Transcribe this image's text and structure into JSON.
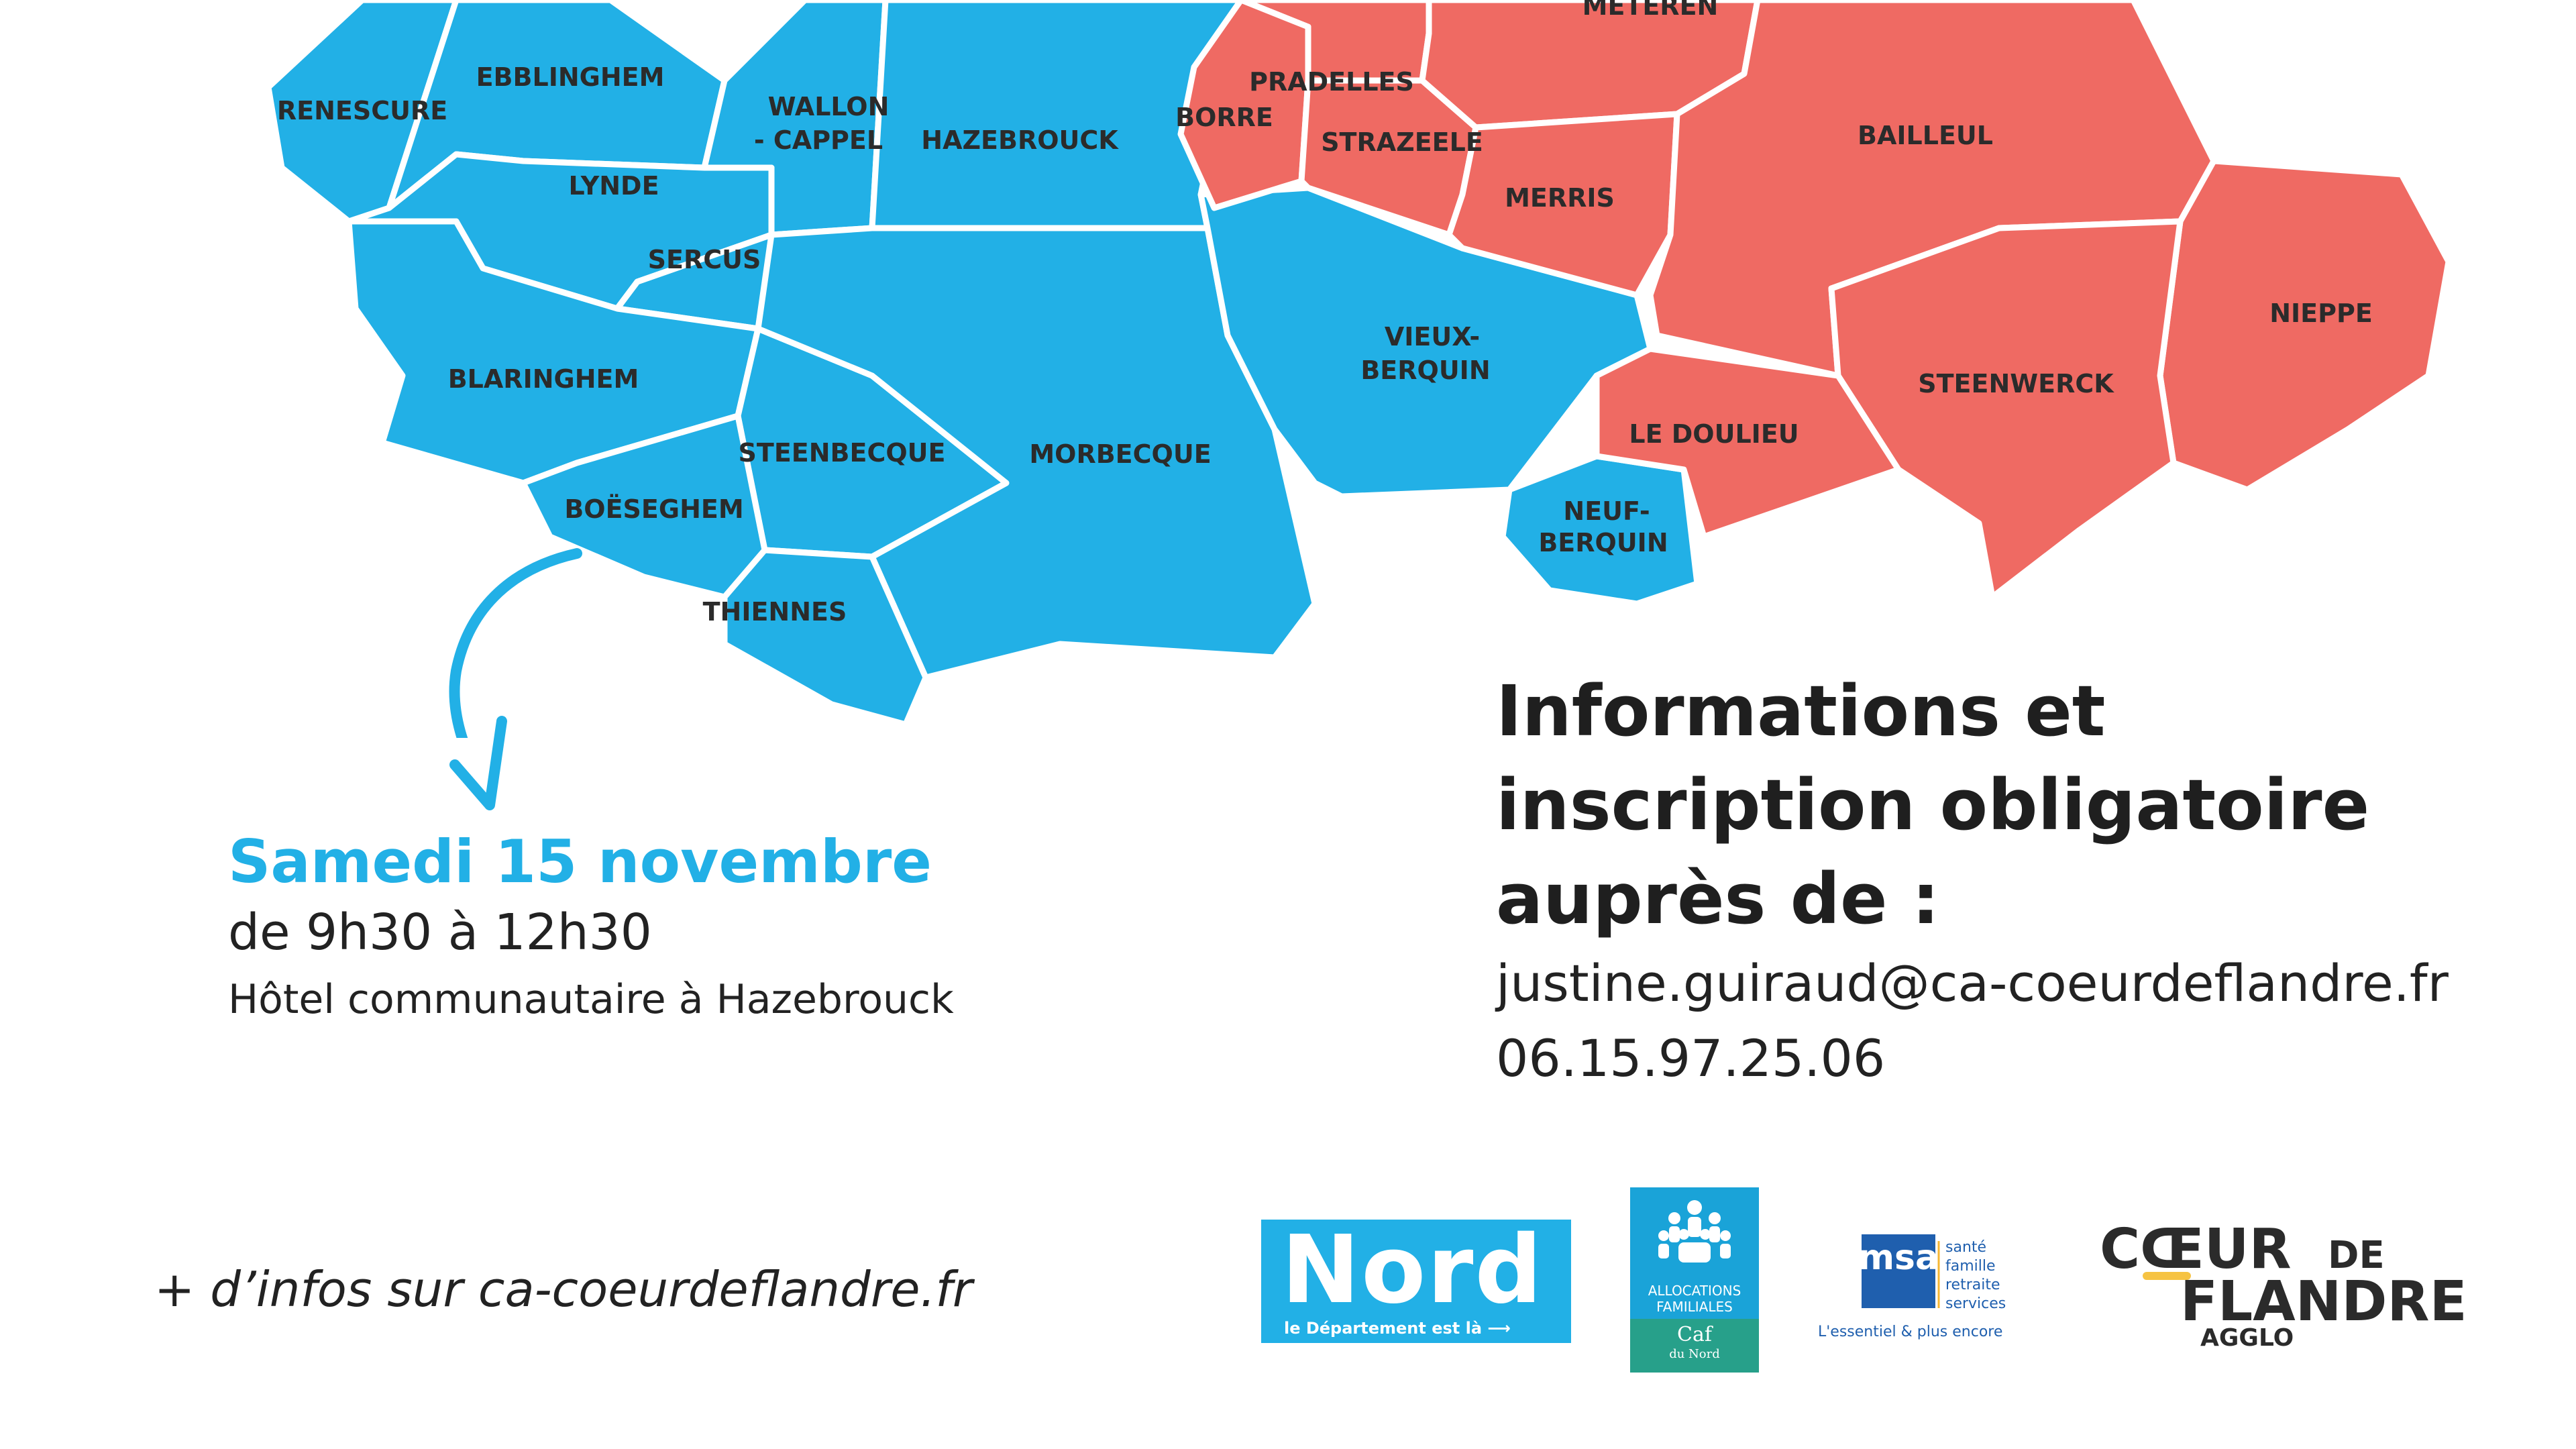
{
  "map": {
    "colors": {
      "west_region": "#22b0e6",
      "east_region": "#ef6a63",
      "borders": "#ffffff"
    },
    "communes_west": [
      "RENESCURE",
      "EBBLINGHEM",
      "WALLON - CAPPEL",
      "HAZEBROUCK",
      "LYNDE",
      "SERCUS",
      "BLARINGHEM",
      "STEENBECQUE",
      "MORBECQUE",
      "BOËSEGHEM",
      "THIENNES",
      "VIEUX-",
      "BERQUIN",
      "NEUF-",
      "BERQUIN"
    ],
    "communes_east": [
      "METEREN",
      "PRADELLES",
      "BORRE",
      "STRAZEELE",
      "MERRIS",
      "BAILLEUL",
      "NIEPPE",
      "STEENWERCK",
      "LE DOULIEU"
    ],
    "labels": {
      "renescure": "RENESCURE",
      "ebblinghem": "EBBLINGHEM",
      "wallon_1": "WALLON",
      "wallon_2": "- CAPPEL",
      "hazebrouck": "HAZEBROUCK",
      "lynde": "LYNDE",
      "sercus": "SERCUS",
      "blaringhem": "BLARINGHEM",
      "steenbecque": "STEENBECQUE",
      "morbecque": "MORBECQUE",
      "boeseghem": "BOËSEGHEM",
      "thiennes": "THIENNES",
      "vieux_1": "VIEUX-",
      "vieux_2": "BERQUIN",
      "neuf_1": "NEUF-",
      "neuf_2": "BERQUIN",
      "meteren": "METEREN",
      "pradelles": "PRADELLES",
      "borre": "BORRE",
      "strazeele": "STRAZEELE",
      "merris": "MERRIS",
      "bailleul": "BAILLEUL",
      "nieppe": "NIEPPE",
      "steenwerck": "STEENWERCK",
      "le_doulieu": "LE DOULIEU"
    }
  },
  "event": {
    "date": "Samedi 15 novembre",
    "hours": "de 9h30 à 12h30",
    "place": "Hôtel communautaire à Hazebrouck",
    "accent_color": "#22b0e6"
  },
  "info": {
    "title_line1": "Informations et",
    "title_line2": "inscription obligatoire",
    "title_line3": "auprès de :",
    "email": "justine.guiraud@ca-coeurdeflandre.fr",
    "phone": "06.15.97.25.06"
  },
  "footer": {
    "more_info": "+ d’infos sur ca-coeurdeflandre.fr"
  },
  "logos": {
    "nord": {
      "name": "Nord",
      "tagline": "le Département est là ⟶",
      "color": "#22b0e6"
    },
    "caf": {
      "line1": "ALLOCATIONS",
      "line2": "FAMILIALES",
      "name": "Caf",
      "sub": "du Nord",
      "color": "#1aa3d8"
    },
    "msa": {
      "mark": "msa",
      "line1": "santé",
      "line2": "famille",
      "line3": "retraite",
      "line4": "services",
      "tagline": "L'essentiel & plus encore"
    },
    "coeur_de_flandre": {
      "line1": "CŒUR",
      "de": "DE",
      "line2": "FLANDRE",
      "line3": "AGGLO",
      "accent": "#f6c343"
    }
  }
}
